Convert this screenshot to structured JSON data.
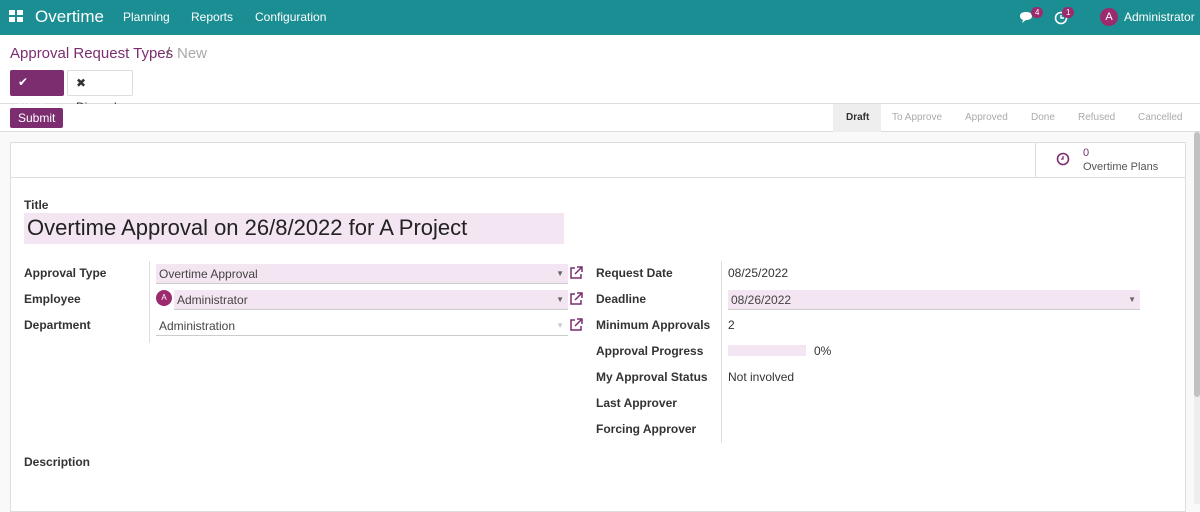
{
  "navbar": {
    "app": "Overtime",
    "menu": [
      "Planning",
      "Reports",
      "Configuration"
    ],
    "messages_count": 4,
    "activities_count": 1,
    "user_initial": "A",
    "user": "Administrator"
  },
  "breadcrumb": {
    "parent": "Approval Request Types",
    "separator": "/",
    "current": "New"
  },
  "buttons": {
    "save": "Save",
    "discard": "Discard",
    "submit": "Submit"
  },
  "statusbar": [
    "Draft",
    "To Approve",
    "Approved",
    "Done",
    "Refused",
    "Cancelled"
  ],
  "smart_button": {
    "count": 0,
    "label": "Overtime Plans"
  },
  "form": {
    "title_label": "Title",
    "title": "Overtime Approval on 26/8/2022 for A Project",
    "left_fields": [
      {
        "label": "Approval Type",
        "value": "Overtime Approval"
      },
      {
        "label": "Employee",
        "value": "Administrator",
        "avatar": "A"
      },
      {
        "label": "Department",
        "value": "Administration"
      }
    ],
    "right_fields": [
      {
        "label": "Request Date",
        "value": "08/25/2022"
      },
      {
        "label": "Deadline",
        "value": "08/26/2022"
      },
      {
        "label": "Minimum Approvals",
        "value": "2"
      },
      {
        "label": "Approval Progress",
        "value": {
          "value": 0,
          "label": "0%"
        }
      },
      {
        "label": "My Approval Status",
        "value": "Not involved"
      },
      {
        "label": "Last Approver"
      },
      {
        "label": "Forcing Approver"
      }
    ],
    "description_label": "Description"
  }
}
